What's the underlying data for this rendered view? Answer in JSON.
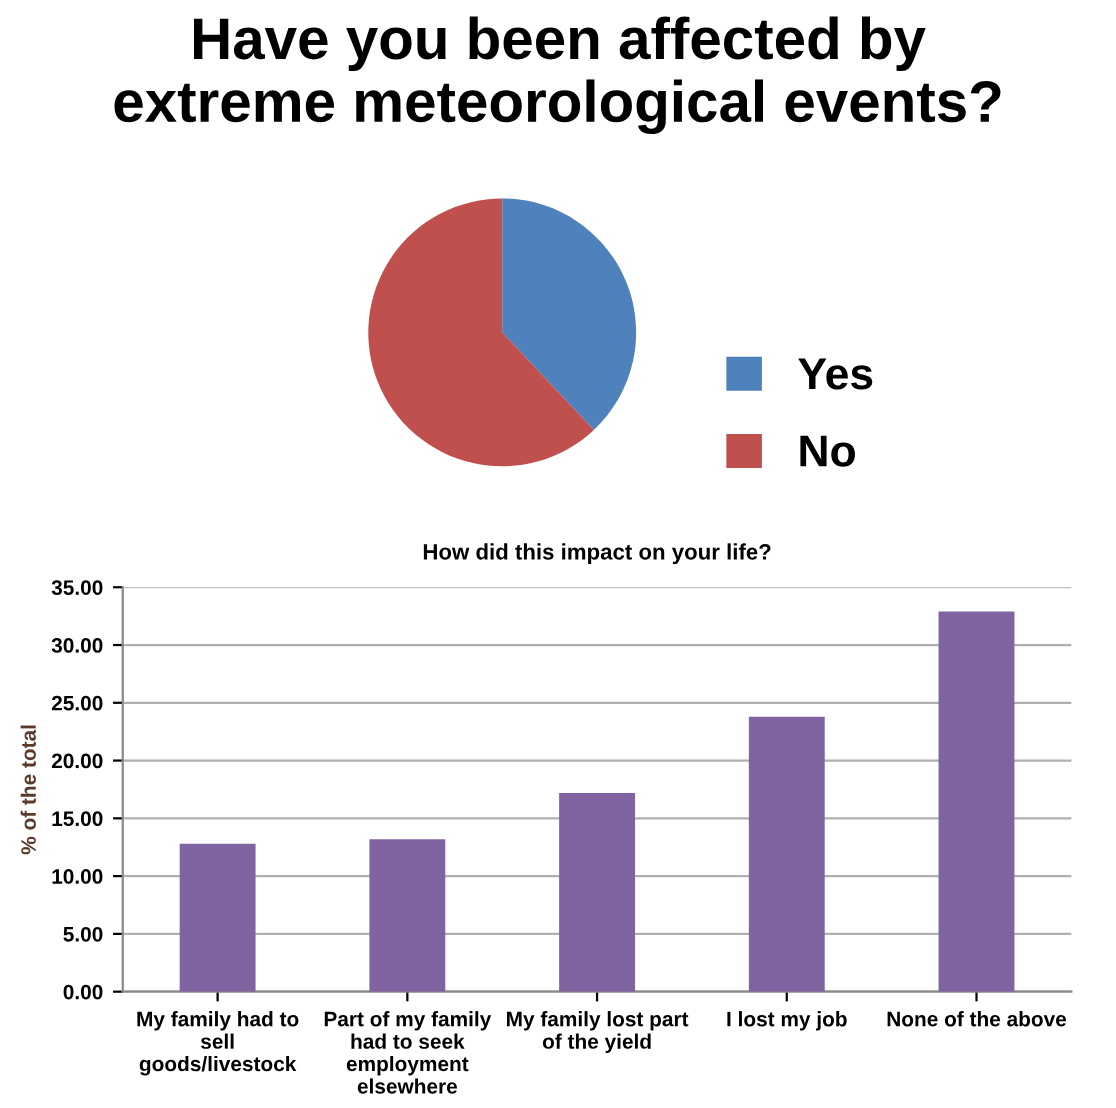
{
  "chart_data": [
    {
      "type": "pie",
      "title": "Have you been affected by\nextreme meteorological events?",
      "categories": [
        "Yes",
        "No"
      ],
      "values": [
        38,
        62
      ],
      "colors": [
        "#4f81bd",
        "#c0504d"
      ],
      "legend": "right"
    },
    {
      "type": "bar",
      "title": "How did this impact on your life?",
      "ylabel": "% of the total",
      "categories": [
        "My family had to\nsell\ngoods/livestock",
        "Part of my family\nhad to seek\nemployment\nelsewhere",
        "My family lost part\nof the yield",
        "I lost my job",
        "None of the above"
      ],
      "values": [
        12.8,
        13.2,
        17.2,
        23.8,
        32.9
      ],
      "color": "#8064a2",
      "ylim": [
        0,
        35
      ],
      "yticks": [
        {
          "value": 0,
          "label": "0.00"
        },
        {
          "value": 5,
          "label": "5.00"
        },
        {
          "value": 10,
          "label": "10.00"
        },
        {
          "value": 15,
          "label": "15.00"
        },
        {
          "value": 20,
          "label": "20.00"
        },
        {
          "value": 25,
          "label": "25.00"
        },
        {
          "value": 30,
          "label": "30.00"
        },
        {
          "value": 35,
          "label": "35.00"
        }
      ],
      "grid": "y"
    }
  ]
}
